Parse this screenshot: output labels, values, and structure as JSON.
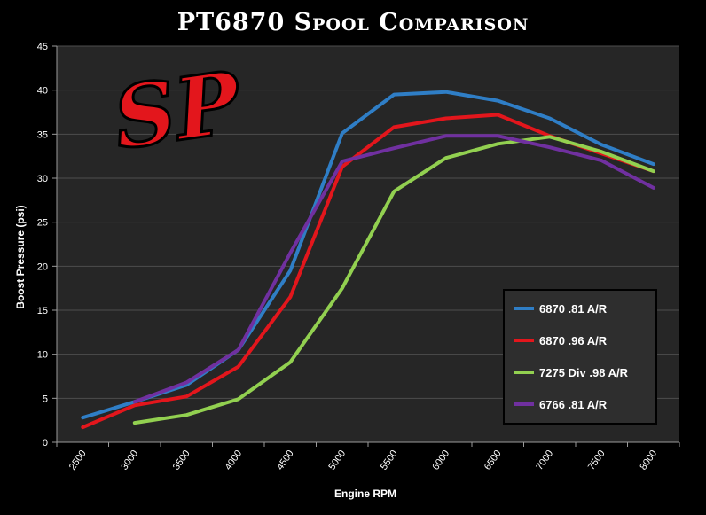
{
  "chart_data": {
    "type": "line",
    "title": "PT6870 Spool Comparison",
    "xlabel": "Engine RPM",
    "ylabel": "Boost Pressure (psi)",
    "ylim": [
      0,
      45
    ],
    "yticks": [
      "0",
      "5",
      "10",
      "15",
      "20",
      "25",
      "30",
      "35",
      "40",
      "45"
    ],
    "categories": [
      "2500",
      "3000",
      "3500",
      "4000",
      "4500",
      "5000",
      "5500",
      "6000",
      "6500",
      "7000",
      "7500",
      "8000"
    ],
    "grid": true,
    "legend_position": "bottom-right",
    "colors": {
      "background": "#000000",
      "plot_area": "#262626",
      "gridline": "#4d4d4d",
      "text": "#ffffff",
      "legend_background": "#2e2e2e",
      "logo_red": "#e3161c"
    },
    "series": [
      {
        "name": "6870 .81 A/R",
        "color": "#2f7ec6",
        "values": [
          2.8,
          4.6,
          6.5,
          10.5,
          19.5,
          35.1,
          39.5,
          39.8,
          38.8,
          36.8,
          33.8,
          31.6
        ]
      },
      {
        "name": "6870 .96 A/R",
        "color": "#e3161c",
        "values": [
          1.7,
          4.2,
          5.2,
          8.6,
          16.5,
          31.3,
          35.8,
          36.8,
          37.2,
          34.8,
          32.8,
          30.8
        ]
      },
      {
        "name": "7275 Div .98 A/R",
        "color": "#92d050",
        "values": [
          null,
          2.2,
          3.1,
          4.9,
          9.1,
          17.5,
          28.5,
          32.3,
          33.9,
          34.7,
          33.0,
          30.8
        ]
      },
      {
        "name": "6766 .81 A/R",
        "color": "#7030a0",
        "values": [
          null,
          4.6,
          6.8,
          10.5,
          21.5,
          31.9,
          33.4,
          34.8,
          34.8,
          33.5,
          32.0,
          28.9
        ]
      }
    ]
  },
  "logo": {
    "text": "SP",
    "icon": "sp-logo-icon"
  }
}
